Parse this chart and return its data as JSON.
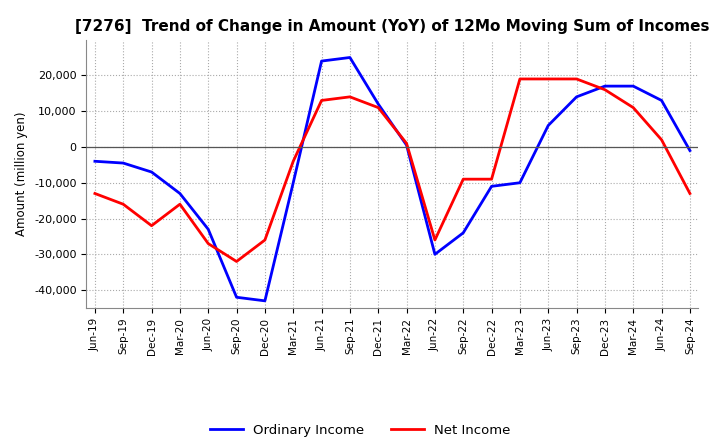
{
  "title": "[7276]  Trend of Change in Amount (YoY) of 12Mo Moving Sum of Incomes",
  "ylabel": "Amount (million yen)",
  "x_labels": [
    "Jun-19",
    "Sep-19",
    "Dec-19",
    "Mar-20",
    "Jun-20",
    "Sep-20",
    "Dec-20",
    "Mar-21",
    "Jun-21",
    "Sep-21",
    "Dec-21",
    "Mar-22",
    "Jun-22",
    "Sep-22",
    "Dec-22",
    "Mar-23",
    "Jun-23",
    "Sep-23",
    "Dec-23",
    "Mar-24",
    "Jun-24",
    "Sep-24"
  ],
  "ordinary_income": [
    -4000,
    -4500,
    -7000,
    -13000,
    -23000,
    -42000,
    -43000,
    -10000,
    24000,
    25000,
    12000,
    500,
    -30000,
    -24000,
    -11000,
    -10000,
    6000,
    14000,
    17000,
    17000,
    13000,
    -1000
  ],
  "net_income": [
    -13000,
    -16000,
    -22000,
    -16000,
    -27000,
    -32000,
    -26000,
    -4000,
    13000,
    14000,
    11000,
    1000,
    -26000,
    -9000,
    -9000,
    19000,
    19000,
    19000,
    16000,
    11000,
    2000,
    -13000
  ],
  "ordinary_color": "#0000ff",
  "net_color": "#ff0000",
  "ylim": [
    -45000,
    30000
  ],
  "yticks": [
    -40000,
    -30000,
    -20000,
    -10000,
    0,
    10000,
    20000
  ],
  "background_color": "#ffffff",
  "grid_color": "#aaaaaa",
  "title_fontsize": 11,
  "legend_labels": [
    "Ordinary Income",
    "Net Income"
  ]
}
